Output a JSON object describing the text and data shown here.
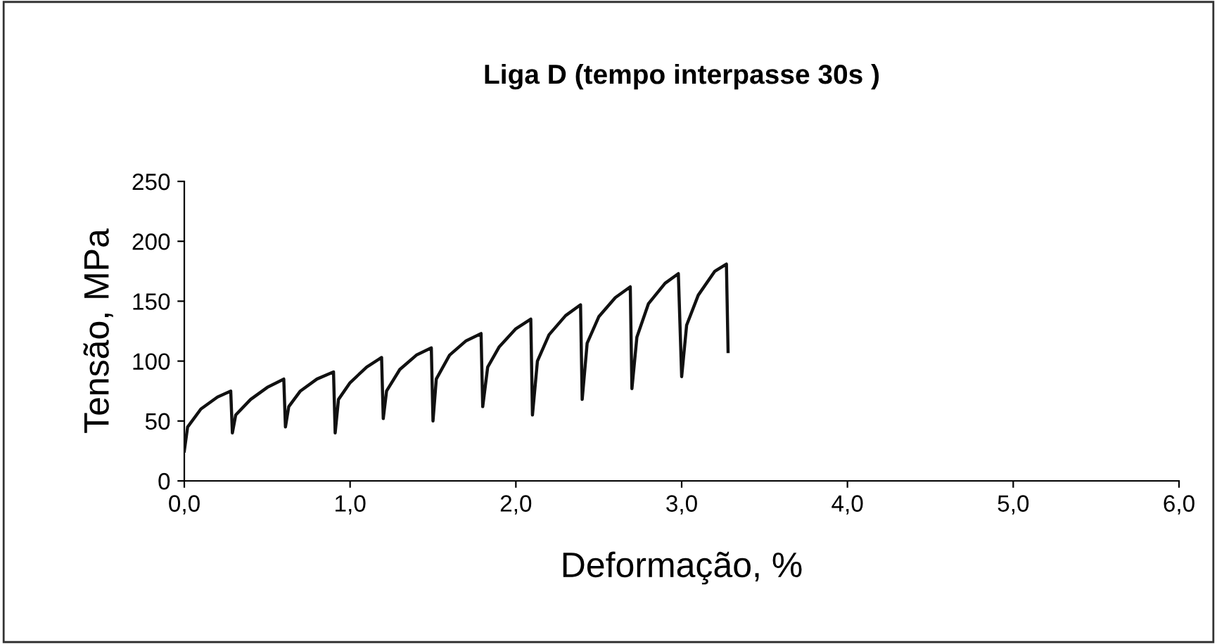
{
  "chart_data": {
    "type": "line",
    "title": "Liga D (tempo interpasse 30s )",
    "xlabel": "Deformação, %",
    "ylabel": "Tensão, MPa",
    "xlim": [
      0,
      6
    ],
    "xticks": [
      {
        "value": 0,
        "label": "0,0"
      },
      {
        "value": 1,
        "label": "1,0"
      },
      {
        "value": 2,
        "label": "2,0"
      },
      {
        "value": 3,
        "label": "3,0"
      },
      {
        "value": 4,
        "label": "4,0"
      },
      {
        "value": 5,
        "label": "5,0"
      },
      {
        "value": 6,
        "label": "6,0"
      }
    ],
    "ylim": [
      0,
      250
    ],
    "yticks": [
      0,
      50,
      100,
      150,
      200,
      250
    ],
    "marker": "none",
    "line_style": "solid",
    "series": [
      {
        "color": "#111111",
        "x": [
          0,
          0.02,
          0.1,
          0.2,
          0.28,
          0.29,
          0.31,
          0.4,
          0.5,
          0.6,
          0.61,
          0.63,
          0.7,
          0.8,
          0.9,
          0.91,
          0.93,
          1.0,
          1.1,
          1.19,
          1.2,
          1.22,
          1.3,
          1.4,
          1.49,
          1.5,
          1.52,
          1.6,
          1.7,
          1.79,
          1.8,
          1.83,
          1.9,
          2.0,
          2.09,
          2.1,
          2.13,
          2.2,
          2.3,
          2.39,
          2.4,
          2.43,
          2.5,
          2.6,
          2.69,
          2.7,
          2.73,
          2.8,
          2.9,
          2.98,
          3.0,
          3.03,
          3.1,
          3.2,
          3.27,
          3.28
        ],
        "values": [
          25,
          45,
          60,
          70,
          75,
          40,
          55,
          68,
          78,
          85,
          45,
          62,
          75,
          85,
          91,
          40,
          68,
          82,
          95,
          103,
          52,
          75,
          93,
          105,
          111,
          50,
          85,
          105,
          117,
          123,
          62,
          95,
          112,
          127,
          135,
          55,
          100,
          122,
          138,
          147,
          68,
          115,
          137,
          153,
          162,
          77,
          120,
          148,
          165,
          173,
          87,
          130,
          155,
          175,
          181,
          108
        ]
      }
    ]
  }
}
